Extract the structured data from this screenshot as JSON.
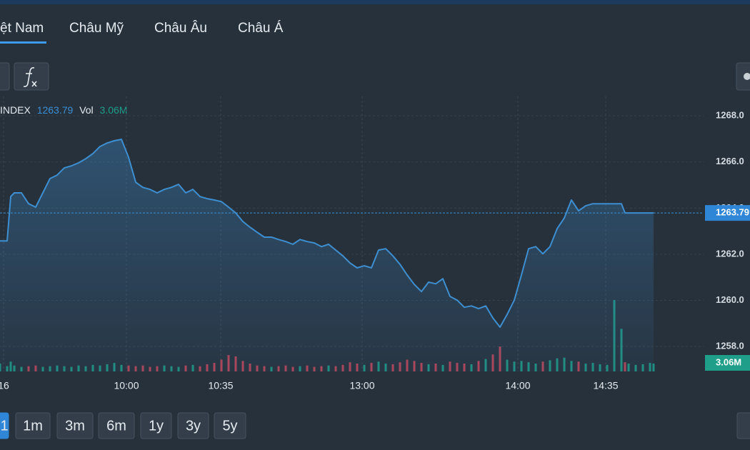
{
  "tabs": [
    "ệt Nam",
    "Châu Mỹ",
    "Châu Âu",
    "Châu Á"
  ],
  "legend": {
    "symbol": "INDEX",
    "price": "1263.79",
    "vol_label": "Vol",
    "volume": "3.06M"
  },
  "range_buttons": [
    "1",
    "1m",
    "3m",
    "6m",
    "1y",
    "3y",
    "5y"
  ],
  "chart_data": {
    "type": "line",
    "color": "#3d8fd1",
    "x": [
      0,
      1,
      1.5,
      2,
      3,
      4,
      5,
      6,
      7,
      8,
      9,
      10,
      11,
      12,
      13,
      14,
      15,
      16,
      17,
      18,
      19,
      20,
      21,
      22,
      23,
      24,
      25,
      26,
      27,
      28,
      29,
      30,
      31,
      32,
      33,
      34,
      35,
      36,
      37,
      38,
      39,
      40,
      41,
      42,
      43,
      44,
      45,
      46,
      47,
      48,
      49,
      50,
      51,
      52,
      53,
      54,
      55,
      56,
      57,
      58,
      59,
      60,
      61,
      62,
      63,
      64,
      65,
      66,
      67,
      68,
      69,
      70,
      71,
      72,
      73,
      74,
      75,
      76,
      77,
      78,
      79,
      80,
      81,
      82,
      83,
      84,
      85,
      86,
      87,
      87.5,
      88,
      89,
      90,
      91,
      91.5
    ],
    "values": [
      1262.58,
      1262.58,
      1264.5,
      1264.66,
      1264.66,
      1264.19,
      1264.04,
      1264.66,
      1265.28,
      1265.43,
      1265.74,
      1265.83,
      1265.96,
      1266.14,
      1266.36,
      1266.67,
      1266.82,
      1266.92,
      1266.98,
      1266.2,
      1265.12,
      1264.9,
      1264.81,
      1264.66,
      1264.81,
      1264.9,
      1265.03,
      1264.66,
      1264.81,
      1264.5,
      1264.41,
      1264.35,
      1264.28,
      1264.04,
      1263.79,
      1263.42,
      1263.17,
      1262.95,
      1262.74,
      1262.74,
      1262.64,
      1262.55,
      1262.43,
      1262.64,
      1262.55,
      1262.49,
      1262.33,
      1262.43,
      1262.18,
      1261.93,
      1261.62,
      1261.41,
      1261.5,
      1261.41,
      1262.18,
      1262.24,
      1261.93,
      1261.56,
      1261.1,
      1260.69,
      1260.38,
      1260.79,
      1260.72,
      1260.94,
      1260.17,
      1260.01,
      1259.7,
      1259.76,
      1259.64,
      1259.76,
      1259.24,
      1258.84,
      1259.39,
      1260.01,
      1261.1,
      1262.24,
      1262.33,
      1262.02,
      1262.33,
      1263.11,
      1263.57,
      1264.35,
      1263.88,
      1264.1,
      1264.19,
      1264.19,
      1264.19,
      1264.19,
      1264.19,
      1263.79,
      1263.79,
      1263.79,
      1263.79,
      1263.79,
      1263.79
    ],
    "volume": [
      1.2,
      0.8,
      1.5,
      0.9,
      0.7,
      0.8,
      0.9,
      0.7,
      0.8,
      0.9,
      0.8,
      0.7,
      0.9,
      0.8,
      1.0,
      0.9,
      1.1,
      1.3,
      1.0,
      0.9,
      0.8,
      0.9,
      0.7,
      0.8,
      0.9,
      0.8,
      0.7,
      0.9,
      1.0,
      0.8,
      1.1,
      1.3,
      1.8,
      2.5,
      2.3,
      1.6,
      1.2,
      0.9,
      0.8,
      0.7,
      0.8,
      0.9,
      0.7,
      0.8,
      0.9,
      0.7,
      0.8,
      0.9,
      0.8,
      1.0,
      1.4,
      1.2,
      1.0,
      1.3,
      1.5,
      1.2,
      1.1,
      1.4,
      1.8,
      1.6,
      1.3,
      1.1,
      1.2,
      1.0,
      1.5,
      1.3,
      1.2,
      1.1,
      1.6,
      1.9,
      2.6,
      3.8,
      1.8,
      1.5,
      1.6,
      1.4,
      1.2,
      1.5,
      1.7,
      2.0,
      2.1,
      1.6,
      1.5,
      1.2,
      1.3,
      1.1,
      1.0,
      10.9,
      6.5,
      1.4,
      1.2,
      1.0,
      1.1,
      1.3,
      1.2
    ],
    "up_color": "#1f9e89",
    "down_color": "#c8485a",
    "xlim": [
      0,
      98.5
    ],
    "ylim": [
      1256.92,
      1268.84
    ],
    "y2lim": [
      0,
      12
    ],
    "xticks": [
      {
        "value": 0.5,
        "label": "16"
      },
      {
        "value": 17.7,
        "label": "10:00"
      },
      {
        "value": 30.9,
        "label": "10:35"
      },
      {
        "value": 50.7,
        "label": "13:00"
      },
      {
        "value": 72.5,
        "label": "14:00"
      },
      {
        "value": 84.8,
        "label": "14:35"
      }
    ],
    "yticks": [
      {
        "value": 1258,
        "label": "1258.0"
      },
      {
        "value": 1260,
        "label": "1260.0"
      },
      {
        "value": 1262,
        "label": "1262.0"
      },
      {
        "value": 1264,
        "label": "1264.0"
      },
      {
        "value": 1266,
        "label": "1266.0"
      },
      {
        "value": 1268,
        "label": "1268.0"
      }
    ],
    "grid": true
  }
}
